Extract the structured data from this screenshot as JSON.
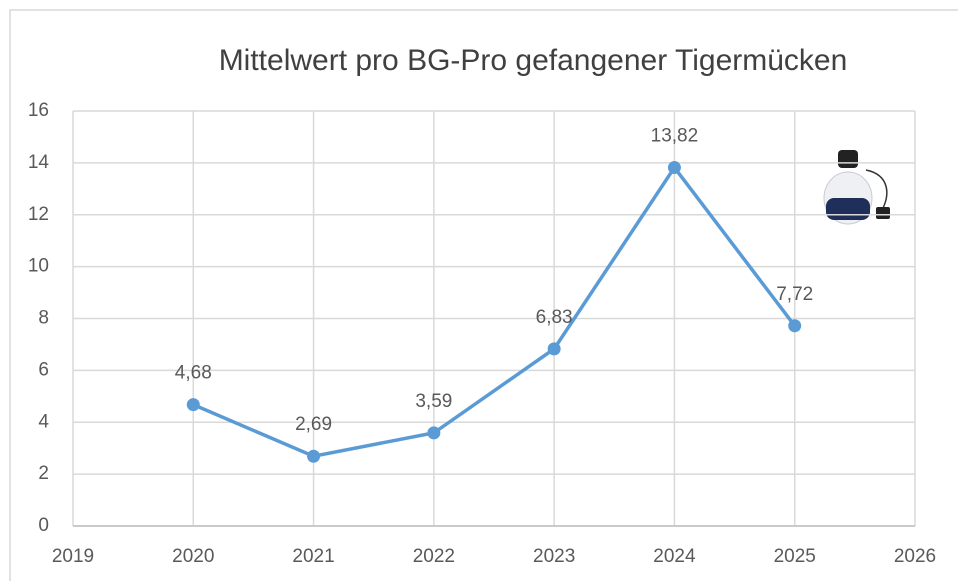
{
  "chart_data": {
    "type": "line",
    "title": "Mittelwert pro BG-Pro gefangener Tigermücken",
    "x": [
      2020,
      2021,
      2022,
      2023,
      2024,
      2025
    ],
    "series": [
      {
        "color": "#5b9bd5",
        "values": [
          4.68,
          2.69,
          3.59,
          6.83,
          13.82,
          7.72
        ],
        "value_labels": [
          "4,68",
          "2,69",
          "3,59",
          "6,83",
          "13,82",
          "7,72"
        ]
      }
    ],
    "xlim": [
      2019,
      2026
    ],
    "xticks": [
      2019,
      2020,
      2021,
      2022,
      2023,
      2024,
      2025,
      2026
    ],
    "ylim": [
      0,
      16
    ],
    "yticks": [
      0,
      2,
      4,
      6,
      8,
      10,
      12,
      14,
      16
    ],
    "grid": true
  }
}
